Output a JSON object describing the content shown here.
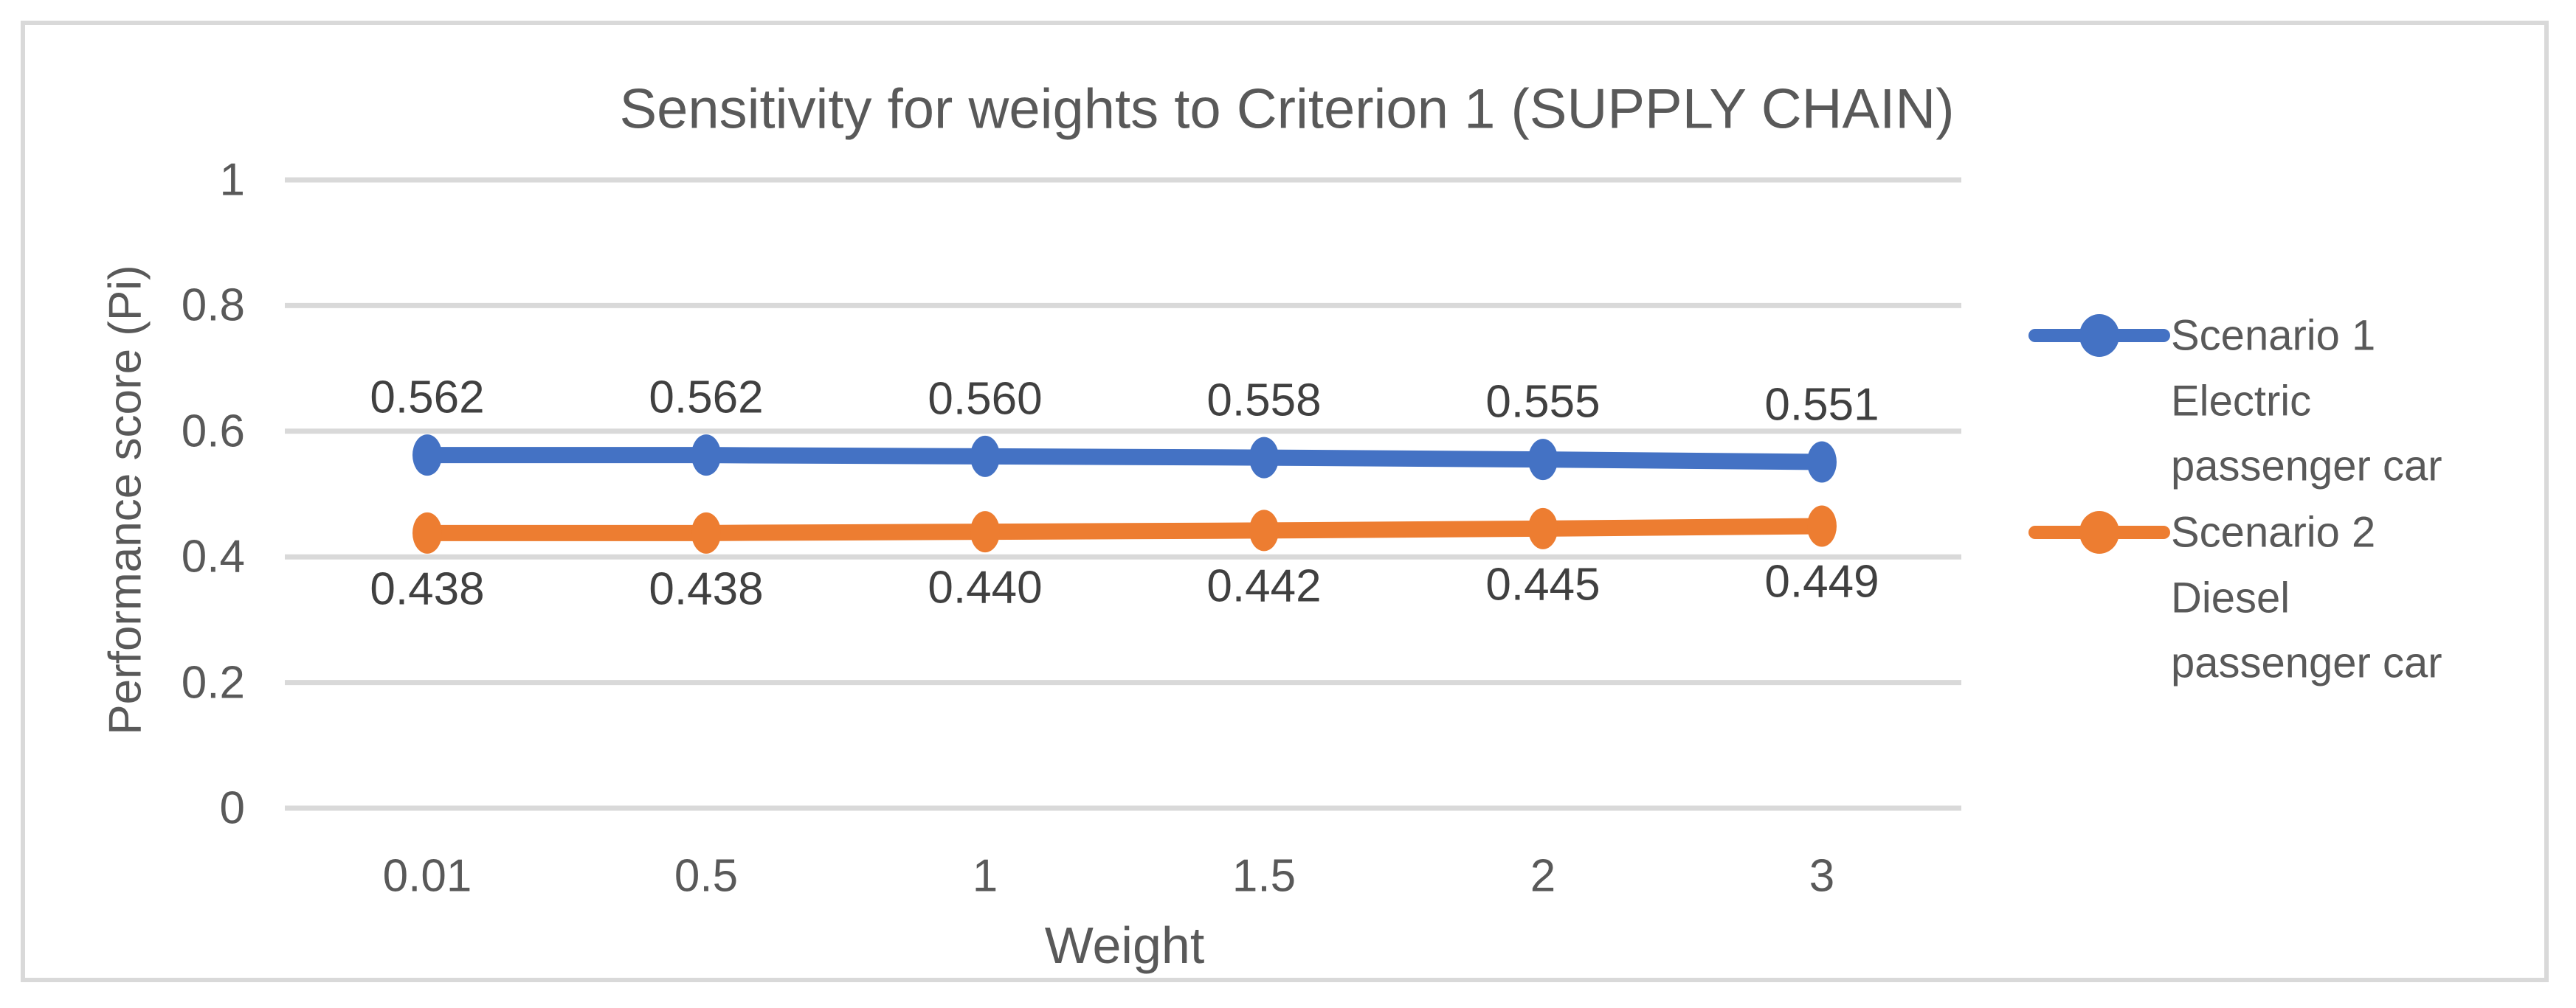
{
  "chart_data": {
    "type": "line",
    "title": "Sensitivity for weights to Criterion 1 (SUPPLY CHAIN)",
    "xlabel": "Weight",
    "ylabel": "Performance score (Pi)",
    "categories": [
      "0.01",
      "0.5",
      "1",
      "1.5",
      "2",
      "3"
    ],
    "series": [
      {
        "name": "Scenario 1 Electric passenger car",
        "legend_lines": [
          "Scenario 1",
          "Electric",
          "passenger car"
        ],
        "values": [
          0.562,
          0.562,
          0.56,
          0.558,
          0.555,
          0.551
        ],
        "value_labels": [
          "0.562",
          "0.562",
          "0.560",
          "0.558",
          "0.555",
          "0.551"
        ],
        "color": "#4472c4",
        "label_position": "above"
      },
      {
        "name": "Scenario 2 Diesel passenger car",
        "legend_lines": [
          "Scenario 2",
          "Diesel",
          "passenger car"
        ],
        "values": [
          0.438,
          0.438,
          0.44,
          0.442,
          0.445,
          0.449
        ],
        "value_labels": [
          "0.438",
          "0.438",
          "0.440",
          "0.442",
          "0.445",
          "0.449"
        ],
        "color": "#ed7d31",
        "label_position": "below"
      }
    ],
    "ylim": [
      0,
      1
    ],
    "yticks": [
      {
        "value": 1,
        "label": "1"
      },
      {
        "value": 0.8,
        "label": "0.8"
      },
      {
        "value": 0.6,
        "label": "0.6"
      },
      {
        "value": 0.4,
        "label": "0.4"
      },
      {
        "value": 0.2,
        "label": "0.2"
      },
      {
        "value": 0,
        "label": "0"
      }
    ],
    "grid": true,
    "legend_position": "right",
    "colors": {
      "gridline": "#d9d9d9",
      "chart_border": "#d9d9d9",
      "axis_text": "#595959",
      "title_text": "#595959",
      "data_label_text": "#404040"
    }
  }
}
